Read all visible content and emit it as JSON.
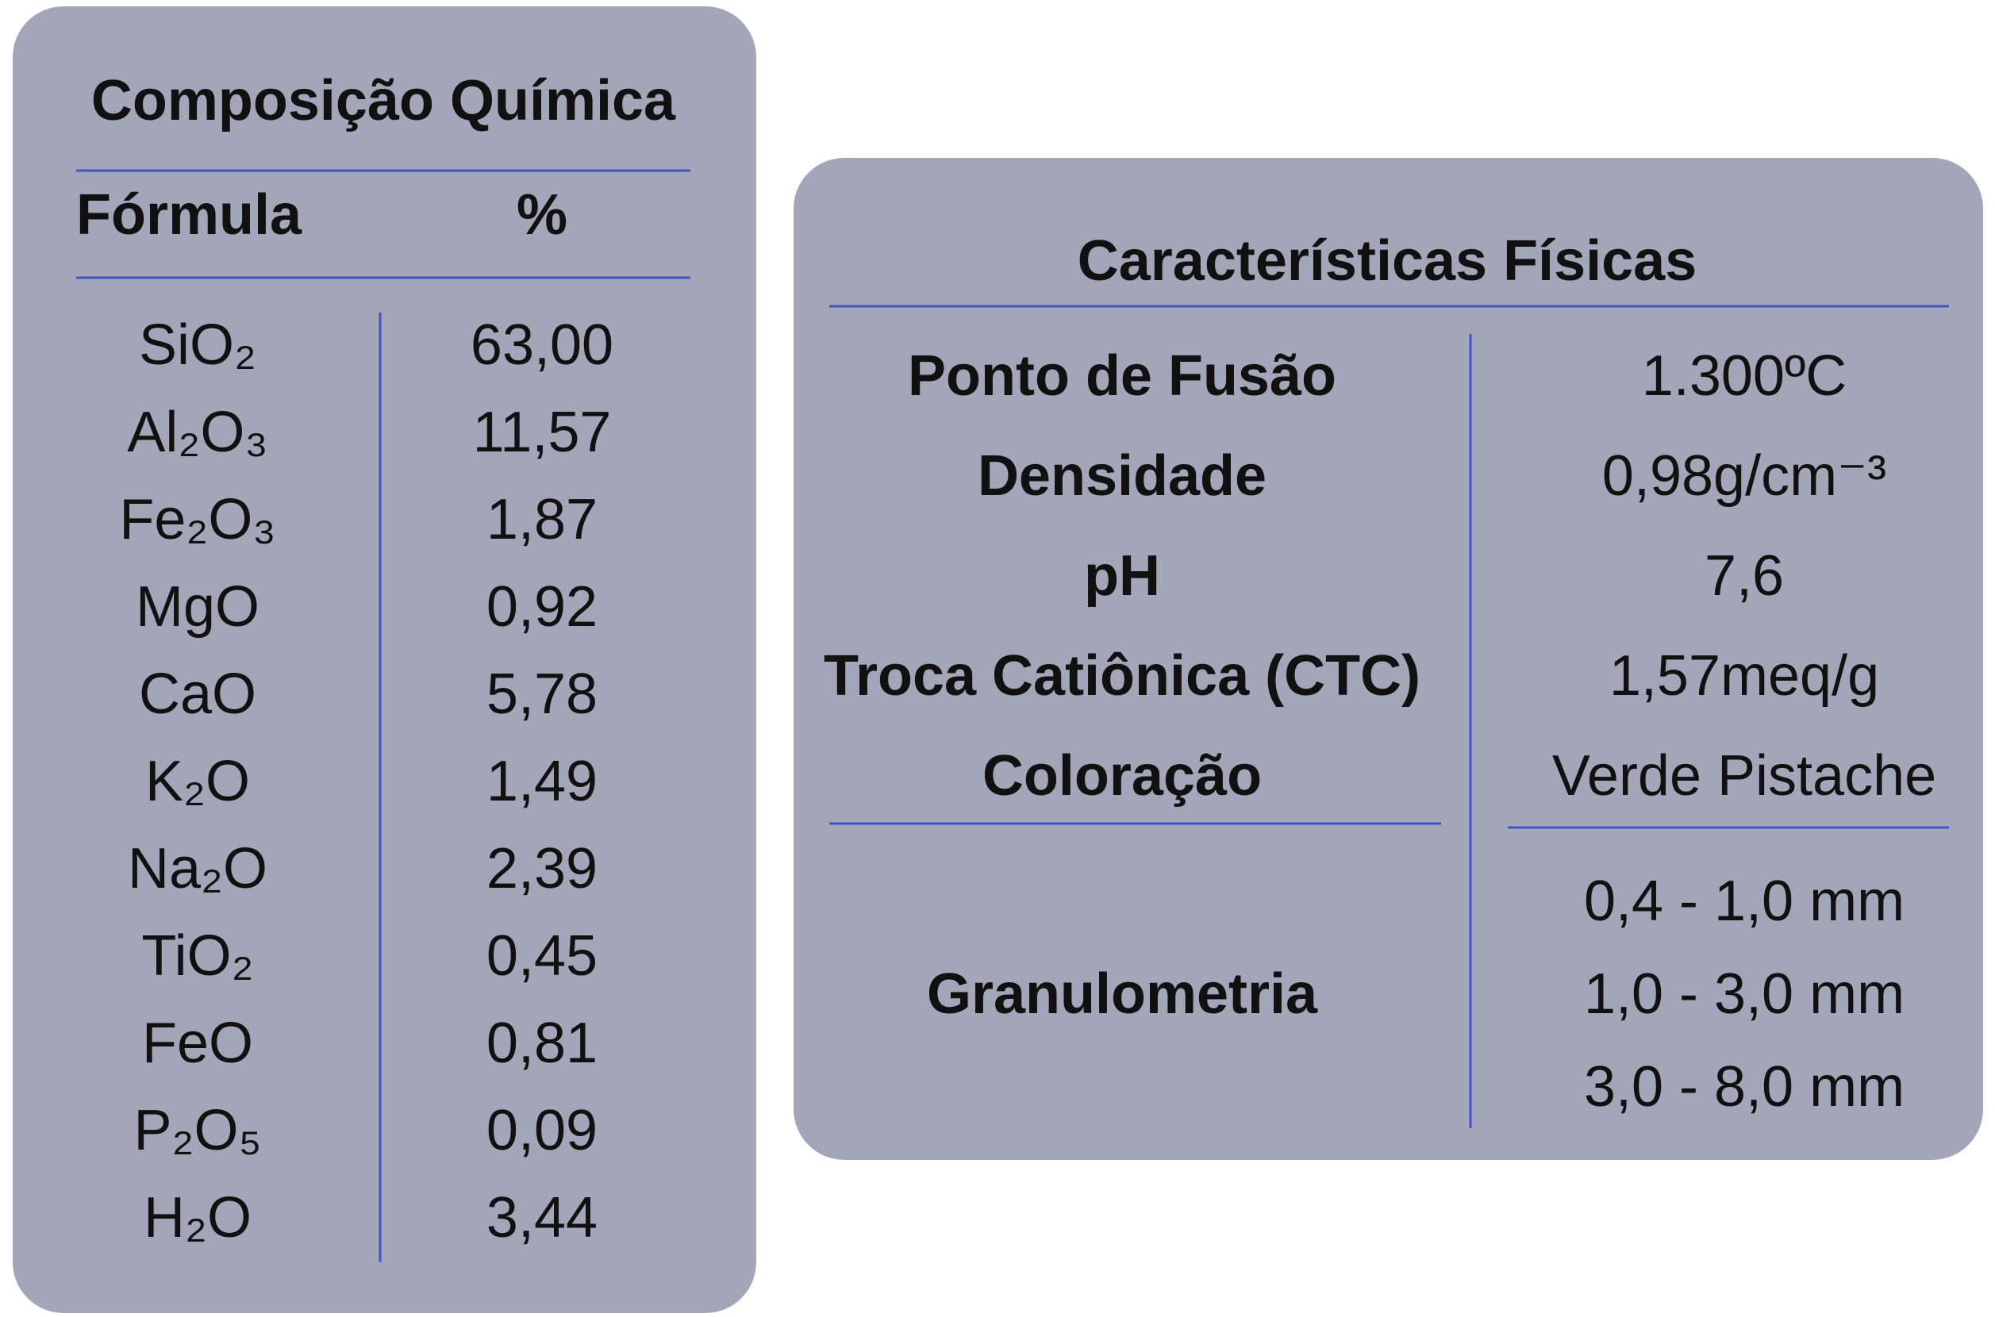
{
  "composition": {
    "title": "Composição Química",
    "header": [
      "Fórmula",
      "%"
    ],
    "rows": [
      [
        "SiO₂",
        "63,00"
      ],
      [
        "Al₂O₃",
        "11,57"
      ],
      [
        "Fe₂O₃",
        "1,87"
      ],
      [
        "MgO",
        "0,92"
      ],
      [
        "CaO",
        "5,78"
      ],
      [
        "K₂O",
        "1,49"
      ],
      [
        "Na₂O",
        "2,39"
      ],
      [
        "TiO₂",
        "0,45"
      ],
      [
        "FeO",
        "0,81"
      ],
      [
        "P₂O₅",
        "0,09"
      ],
      [
        "H₂O",
        "3,44"
      ]
    ]
  },
  "physical": {
    "title": "Características Físicas",
    "rows": [
      [
        "Ponto de Fusão",
        "1.300ºC"
      ],
      [
        "Densidade",
        "0,98g/cm⁻³"
      ],
      [
        "pH",
        "7,6"
      ],
      [
        "Troca Catiônica (CTC)",
        "1,57meq/g"
      ],
      [
        "Coloração",
        "Verde Pistache"
      ]
    ],
    "granulometry": {
      "label": "Granulometria",
      "values": [
        "0,4 - 1,0 mm",
        "1,0 - 3,0 mm",
        "3,0 - 8,0 mm"
      ]
    }
  }
}
